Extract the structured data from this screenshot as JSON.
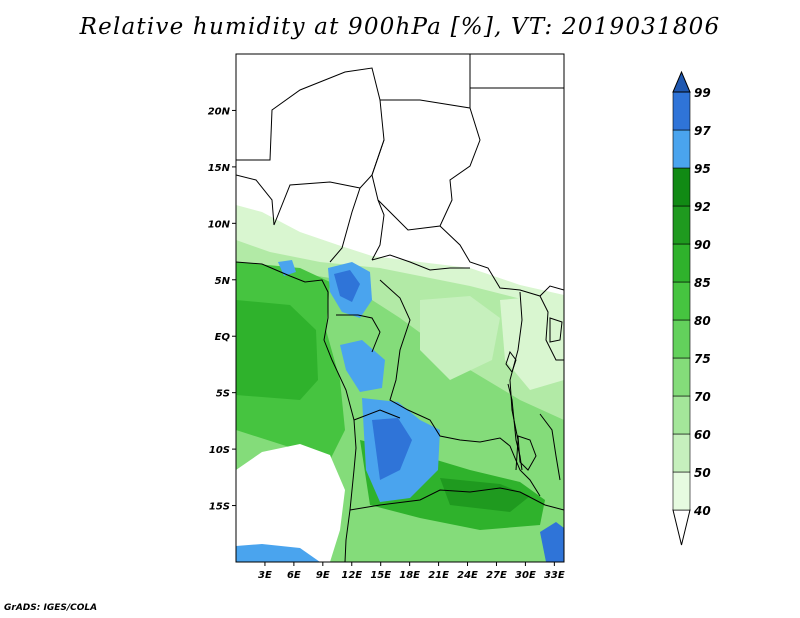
{
  "title": "Relative humidity at 900hPa [%], VT: 2019031806",
  "credit": "GrADS: IGES/COLA",
  "map": {
    "lon_range": [
      0,
      34
    ],
    "lat_range": [
      -20,
      25
    ],
    "lat_ticks": [
      {
        "value": 20,
        "label": "20N"
      },
      {
        "value": 15,
        "label": "15N"
      },
      {
        "value": 10,
        "label": "10N"
      },
      {
        "value": 5,
        "label": "5N"
      },
      {
        "value": 0,
        "label": "EQ"
      },
      {
        "value": -5,
        "label": "5S"
      },
      {
        "value": -10,
        "label": "10S"
      },
      {
        "value": -15,
        "label": "15S"
      }
    ],
    "lon_ticks": [
      {
        "value": 3,
        "label": "3E"
      },
      {
        "value": 6,
        "label": "6E"
      },
      {
        "value": 9,
        "label": "9E"
      },
      {
        "value": 12,
        "label": "12E"
      },
      {
        "value": 15,
        "label": "15E"
      },
      {
        "value": 18,
        "label": "18E"
      },
      {
        "value": 21,
        "label": "21E"
      },
      {
        "value": 24,
        "label": "24E"
      },
      {
        "value": 27,
        "label": "27E"
      },
      {
        "value": 30,
        "label": "30E"
      },
      {
        "value": 33,
        "label": "33E"
      }
    ]
  },
  "colorbar": {
    "labels": [
      "99",
      "97",
      "95",
      "92",
      "90",
      "85",
      "80",
      "75",
      "70",
      "60",
      "50",
      "40"
    ],
    "colors": [
      "#ffffff",
      "#e6fbe0",
      "#c6f0bd",
      "#a4e69a",
      "#84dc7a",
      "#63d15c",
      "#46c440",
      "#2fb22c",
      "#1f9a1f",
      "#118a14",
      "#4aa4ee",
      "#2f74d8",
      "#1f58b0"
    ]
  }
}
